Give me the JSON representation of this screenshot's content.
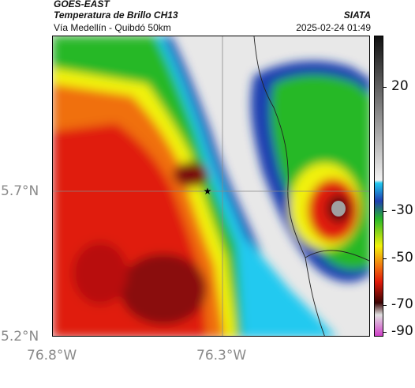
{
  "header": {
    "satellite": "GOES-EAST",
    "product": "Temperatura de Brillo CH13",
    "organization": "SIATA",
    "subtitle": "Vía Medellín - Quibdó 50km",
    "datetime": "2025-02-24 01:49"
  },
  "map": {
    "lat_labels": [
      "5.7°N",
      "5.2°N"
    ],
    "lon_labels": [
      "76.8°W",
      "76.3°W"
    ],
    "marker_icon": "star-icon"
  },
  "colorbar": {
    "labels": [
      "20",
      "-30",
      "-50",
      "-70",
      "-90"
    ],
    "colors": {
      "warm": "#d9d9d9",
      "cyan": "#21c9f0",
      "blue": "#1f3fb0",
      "green": "#28b828",
      "yellow": "#f2f20a",
      "orange": "#f07010",
      "red": "#e01a0a",
      "darkred": "#5a0a0a",
      "magenta": "#d040c8"
    }
  }
}
